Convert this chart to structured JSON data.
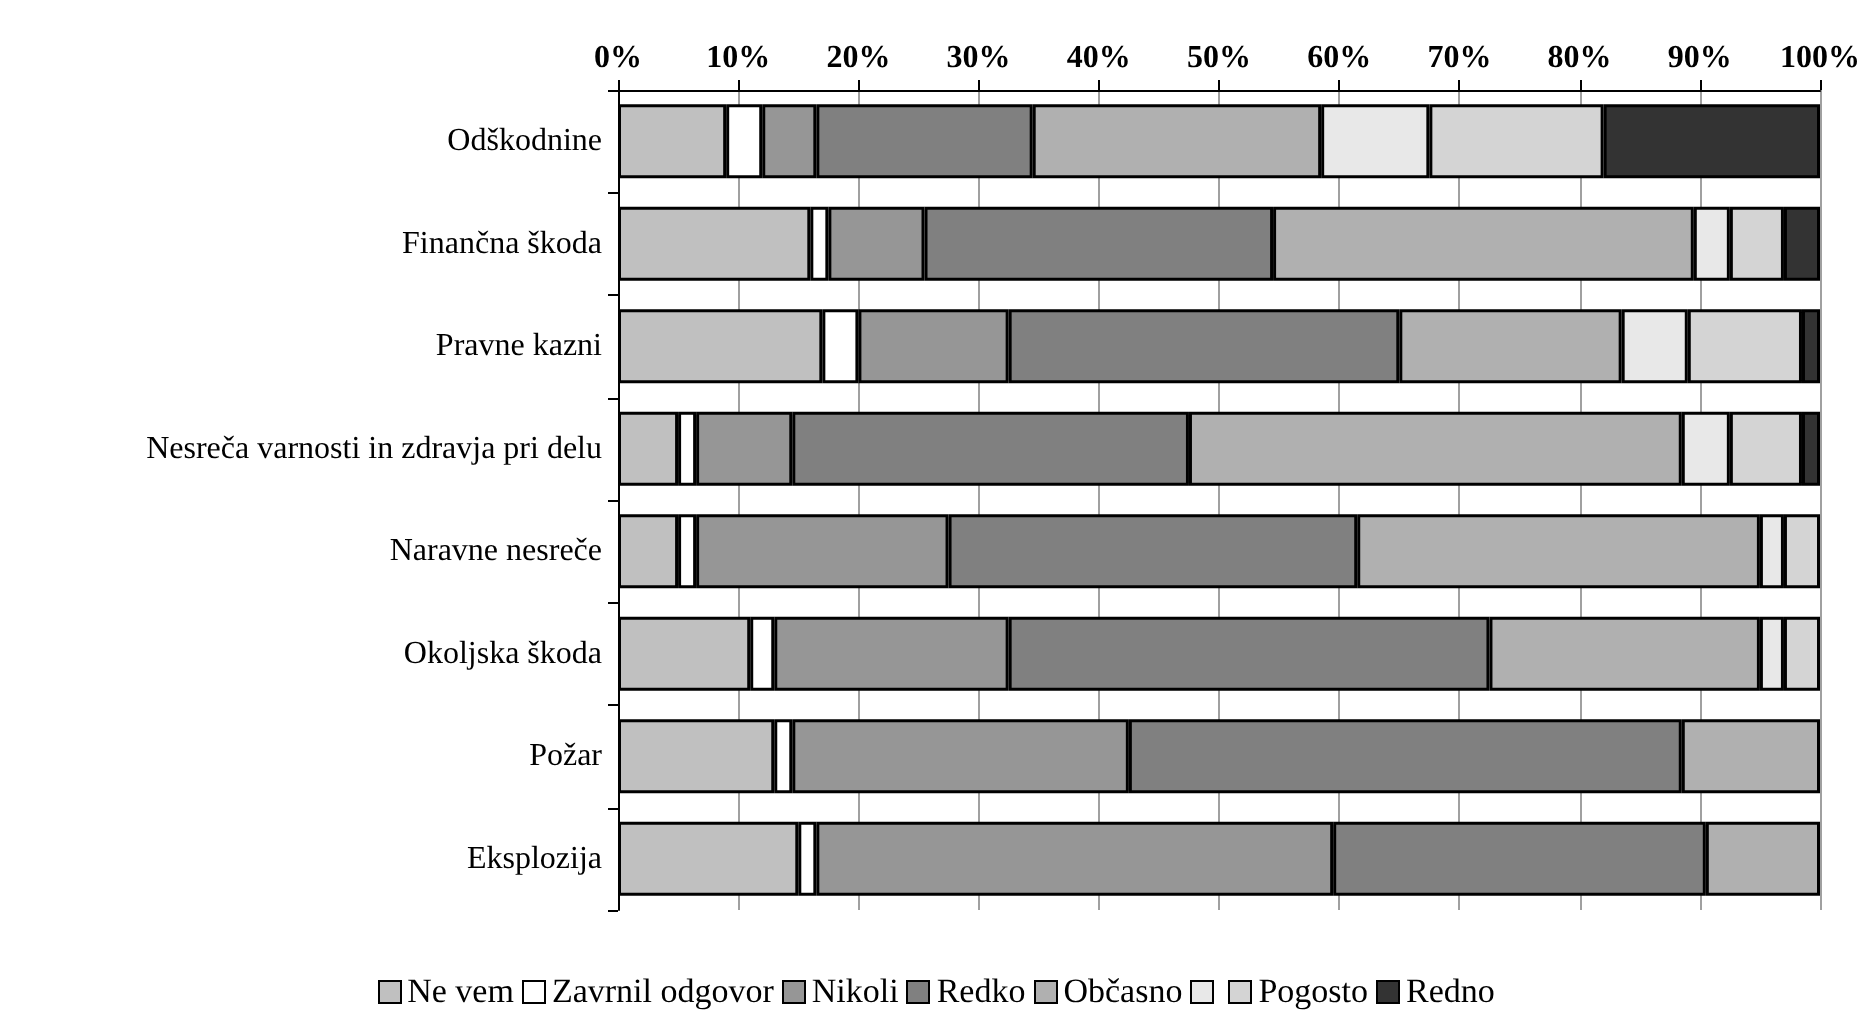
{
  "chart_data": {
    "type": "bar",
    "orientation": "horizontal",
    "stacked": true,
    "grid": "x",
    "legend": "bottom",
    "categories": [
      "Odškodnine",
      "Finančna škoda",
      "Pravne kazni",
      "Nesreča varnosti in zdravja pri delu",
      "Naravne nesreče",
      "Okoljska škoda",
      "Požar",
      "Eksplozija"
    ],
    "xlim": [
      0,
      100
    ],
    "xticks": [
      {
        "value": 0,
        "label": "0%"
      },
      {
        "value": 10,
        "label": "10%"
      },
      {
        "value": 20,
        "label": "20%"
      },
      {
        "value": 30,
        "label": "30%"
      },
      {
        "value": 40,
        "label": "40%"
      },
      {
        "value": 50,
        "label": "50%"
      },
      {
        "value": 60,
        "label": "60%"
      },
      {
        "value": 70,
        "label": "70%"
      },
      {
        "value": 80,
        "label": "80%"
      },
      {
        "value": 90,
        "label": "90%"
      },
      {
        "value": 100,
        "label": "100%"
      }
    ],
    "series": [
      {
        "name": "Ne vem",
        "color": "#c0c0c0",
        "values": [
          9,
          16,
          17,
          5,
          5,
          11,
          13,
          15
        ]
      },
      {
        "name": "Zavrnil odgovor",
        "color": "#ffffff",
        "values": [
          3,
          1.5,
          3,
          1.5,
          1.5,
          2,
          1.5,
          1.5
        ]
      },
      {
        "name": "Nikoli",
        "color": "#969696",
        "values": [
          4.5,
          8,
          12.5,
          8,
          21,
          19.5,
          28,
          43
        ]
      },
      {
        "name": "Redko",
        "color": "#808080",
        "values": [
          18,
          29,
          32.5,
          33,
          34,
          40,
          46,
          31
        ]
      },
      {
        "name": "Občasno",
        "color": "#b0b0b0",
        "values": [
          24,
          35,
          18.5,
          41,
          33.5,
          22.5,
          11.5,
          9.5
        ]
      },
      {
        "color": "#e8e8e8",
        "values": [
          9,
          3,
          5.5,
          4,
          2,
          2,
          null,
          null
        ]
      },
      {
        "name": "Pogosto",
        "color": "#d4d4d4",
        "values": [
          14.5,
          4.5,
          9.5,
          6,
          3,
          3,
          null,
          null
        ]
      },
      {
        "name": "Redno",
        "color": "#333333",
        "values": [
          18,
          3,
          1.5,
          1.5,
          null,
          null,
          null,
          null
        ]
      }
    ]
  }
}
